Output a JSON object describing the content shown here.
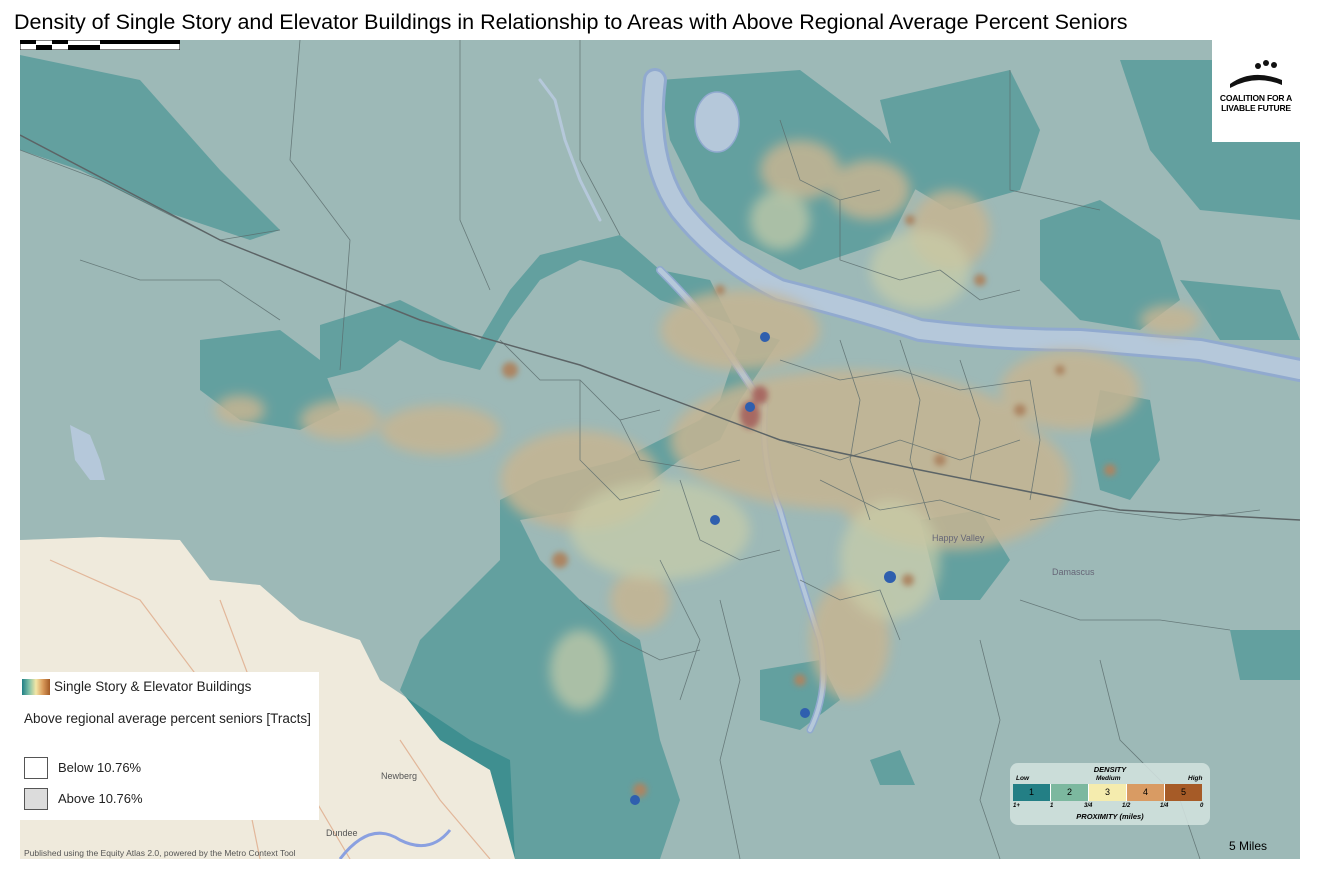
{
  "title": "Density of Single Story and Elevator Buildings in Relationship to Areas with Above Regional Average Percent Seniors",
  "logo": {
    "line1": "COALITION FOR A",
    "line2": "LIVABLE FUTURE"
  },
  "legend": {
    "ramp_label": "Single Story & Elevator Buildings",
    "seniors_title": "Above regional average percent seniors [Tracts]",
    "classes": [
      {
        "label": "Below 10.76%",
        "fill": "#ffffff"
      },
      {
        "label": "Above 10.76%",
        "fill": "#dcdcdc"
      }
    ]
  },
  "density_legend": {
    "title": "DENSITY",
    "low": "Low",
    "medium": "Medium",
    "high": "High",
    "cells": [
      {
        "label": "1",
        "color": "#237f85"
      },
      {
        "label": "2",
        "color": "#7cb89f"
      },
      {
        "label": "3",
        "color": "#f5ecae"
      },
      {
        "label": "4",
        "color": "#d99b63"
      },
      {
        "label": "5",
        "color": "#a65b27"
      }
    ],
    "proximity": [
      "1+",
      "1",
      "3/4",
      "1/2",
      "1/4",
      "0"
    ],
    "proximity_title": "PROXIMITY (miles)"
  },
  "scale": {
    "label": "5 Miles"
  },
  "credit": "Published using the Equity Atlas 2.0, powered by the Metro Context Tool",
  "places": [
    "Newberg",
    "Dundee",
    "Happy Valley",
    "Damascus"
  ],
  "colors": {
    "base_teal": "#3f8f90",
    "gray_overlay": "#9eb9b8",
    "water": "#c6d2f2",
    "river_outline": "#8aa0e0",
    "land": "#efeadc",
    "hot_orange": "#e3b27a",
    "hot_brown": "#b8642c",
    "hot_red": "#b0352a"
  }
}
